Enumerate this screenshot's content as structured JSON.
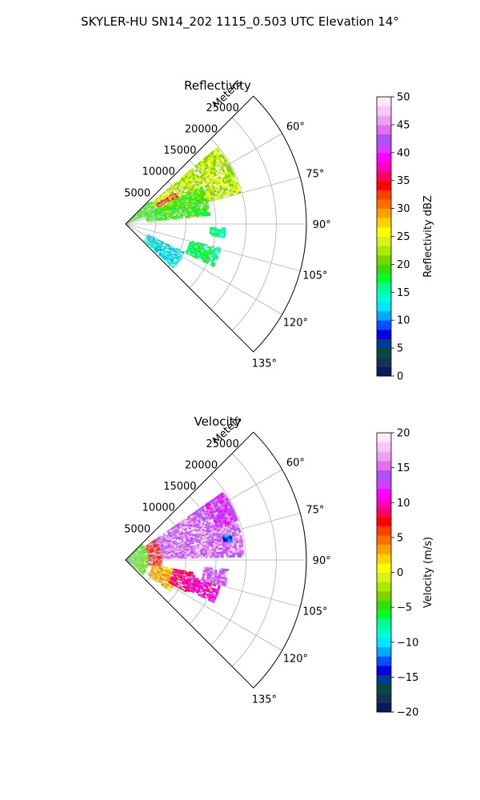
{
  "figure": {
    "suptitle": "SKYLER-HU  SN14_202  1115_0.503 UTC Elevation 14°"
  },
  "chart_data": [
    {
      "type": "heatmap",
      "subtype": "polar-sector (PPI radar scan)",
      "title": "Reflectivity",
      "radial_axis_label": "Meters",
      "radial_ticks": [
        "5000",
        "10000",
        "15000",
        "20000",
        "25000"
      ],
      "radial_range": [
        0,
        30000
      ],
      "angle_ticks": [
        "60°",
        "75°",
        "90°",
        "105°",
        "120°",
        "135°"
      ],
      "angle_range_deg": [
        45,
        135
      ],
      "colorbar": {
        "label": "Reflectivity dBZ",
        "range": [
          0,
          50
        ],
        "ticks": [
          "0",
          "5",
          "10",
          "15",
          "20",
          "25",
          "30",
          "35",
          "40",
          "45",
          "50"
        ]
      },
      "echo_regions": [
        {
          "az_from": 50,
          "az_to": 75,
          "r_from": 5000,
          "r_to": 19500,
          "value": 23
        },
        {
          "az_from": 57,
          "az_to": 63,
          "r_from": 6000,
          "r_to": 9500,
          "value": 34
        },
        {
          "az_from": 64,
          "az_to": 84,
          "r_from": 3500,
          "r_to": 14000,
          "value": 19
        },
        {
          "az_from": 45,
          "az_to": 68,
          "r_from": 0,
          "r_to": 5500,
          "value": 19
        },
        {
          "az_from": 115,
          "az_to": 132,
          "r_from": 4000,
          "r_to": 10500,
          "value": 13
        },
        {
          "az_from": 104,
          "az_to": 116,
          "r_from": 11000,
          "r_to": 16000,
          "value": 17
        },
        {
          "az_from": 92,
          "az_to": 98,
          "r_from": 14000,
          "r_to": 16500,
          "value": 16
        }
      ],
      "grid": true
    },
    {
      "type": "heatmap",
      "subtype": "polar-sector (PPI radar scan)",
      "title": "Velocity",
      "radial_axis_label": "Meters",
      "radial_ticks": [
        "5000",
        "10000",
        "15000",
        "20000",
        "25000"
      ],
      "radial_range": [
        0,
        30000
      ],
      "angle_ticks": [
        "60°",
        "75°",
        "90°",
        "105°",
        "120°",
        "135°"
      ],
      "angle_range_deg": [
        45,
        135
      ],
      "colorbar": {
        "label": "Velocity (m/s)",
        "range": [
          -20,
          20
        ],
        "ticks": [
          "−20",
          "−15",
          "−10",
          "−5",
          "0",
          "5",
          "10",
          "15",
          "20"
        ]
      },
      "echo_regions": [
        {
          "az_from": 45,
          "az_to": 130,
          "r_from": 0,
          "r_to": 3800,
          "value": -4
        },
        {
          "az_from": 55,
          "az_to": 102,
          "r_from": 3800,
          "r_to": 6000,
          "value": 7
        },
        {
          "az_from": 100,
          "az_to": 125,
          "r_from": 4500,
          "r_to": 9000,
          "value": 3
        },
        {
          "az_from": 55,
          "az_to": 88,
          "r_from": 6000,
          "r_to": 19500,
          "value": 15
        },
        {
          "az_from": 55,
          "az_to": 70,
          "r_from": 16000,
          "r_to": 19500,
          "value": 13
        },
        {
          "az_from": 100,
          "az_to": 118,
          "r_from": 8000,
          "r_to": 11500,
          "value": 9
        },
        {
          "az_from": 104,
          "az_to": 116,
          "r_from": 11000,
          "r_to": 16000,
          "value": 11
        },
        {
          "az_from": 95,
          "az_to": 104,
          "r_from": 13000,
          "r_to": 17000,
          "value": 15
        },
        {
          "az_from": 76,
          "az_to": 80,
          "r_from": 16500,
          "r_to": 18000,
          "value": -12
        }
      ],
      "grid": true
    }
  ],
  "colormap": [
    "#0a1a5e",
    "#12335a",
    "#0b4a3a",
    "#003b8c",
    "#0000e0",
    "#0050ff",
    "#00a8ff",
    "#00e6ff",
    "#00ffd0",
    "#00ff90",
    "#00ff30",
    "#30e000",
    "#7ad400",
    "#a8ec00",
    "#d8f020",
    "#ffff00",
    "#ffd400",
    "#ffa000",
    "#ff7000",
    "#ff4000",
    "#ff0000",
    "#ff0060",
    "#ff00c0",
    "#ff00ff",
    "#d040ff",
    "#b050ff",
    "#e070f0",
    "#f0a0f0",
    "#f8c8f8",
    "#fde8fd"
  ]
}
